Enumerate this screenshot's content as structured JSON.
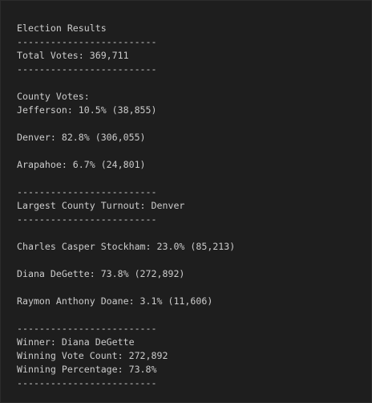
{
  "lines": [
    "Election Results",
    "-------------------------",
    "Total Votes: 369,711",
    "-------------------------",
    "County Votes:",
    "Jefferson: 10.5% (38,855)",
    "Denver: 82.8% (306,055)",
    "Arapahoe: 6.7% (24,801)",
    "-------------------------",
    "Largest County Turnout: Denver",
    "-------------------------",
    "Charles Casper Stockham: 23.0% (85,213)",
    "Diana DeGette: 73.8% (272,892)",
    "Raymon Anthony Doane: 3.1% (11,606)",
    "-------------------------",
    "Winner: Diana DeGette",
    "Winning Vote Count: 272,892",
    "Winning Percentage: 73.8%",
    "-------------------------"
  ]
}
